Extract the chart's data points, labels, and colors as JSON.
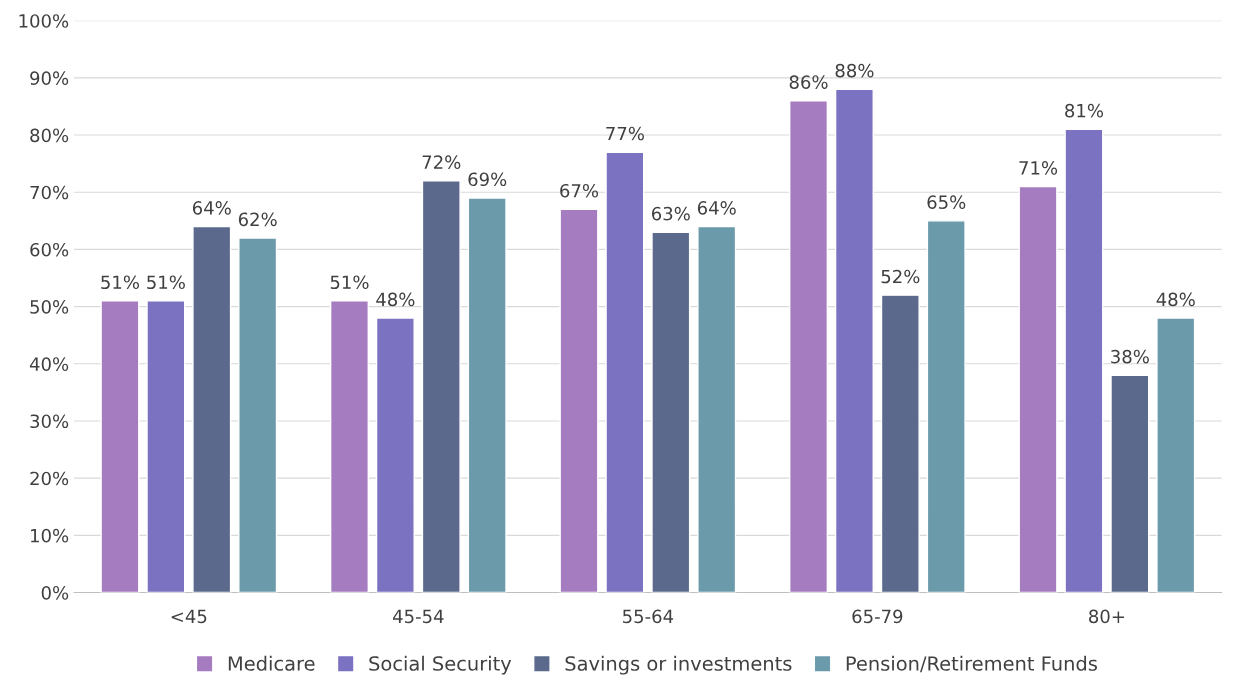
{
  "chart_data": {
    "type": "bar",
    "categories": [
      "<45",
      "45-54",
      "55-64",
      "65-79",
      "80+"
    ],
    "series": [
      {
        "name": "Medicare",
        "color": "#a67cc0",
        "values": [
          51,
          51,
          67,
          86,
          71
        ],
        "value_labels": [
          "51%",
          "51%",
          "67%",
          "86%",
          "71%"
        ]
      },
      {
        "name": "Social Security",
        "color": "#7b72c2",
        "values": [
          51,
          48,
          77,
          88,
          81
        ],
        "value_labels": [
          "51%",
          "48%",
          "77%",
          "88%",
          "81%"
        ]
      },
      {
        "name": "Savings or investments",
        "color": "#5b6a8c",
        "values": [
          64,
          72,
          63,
          52,
          38
        ],
        "value_labels": [
          "64%",
          "72%",
          "63%",
          "52%",
          "38%"
        ]
      },
      {
        "name": "Pension/Retirement Funds",
        "color": "#6b9aab",
        "values": [
          62,
          69,
          64,
          65,
          48
        ],
        "value_labels": [
          "62%",
          "69%",
          "64%",
          "65%",
          "48%"
        ]
      }
    ],
    "ylim": [
      0,
      100
    ],
    "yticks": [
      {
        "value": 0,
        "label": "0%"
      },
      {
        "value": 10,
        "label": "10%"
      },
      {
        "value": 20,
        "label": "20%"
      },
      {
        "value": 30,
        "label": "30%"
      },
      {
        "value": 40,
        "label": "40%"
      },
      {
        "value": 50,
        "label": "50%"
      },
      {
        "value": 60,
        "label": "60%"
      },
      {
        "value": 70,
        "label": "70%"
      },
      {
        "value": 80,
        "label": "80%"
      },
      {
        "value": 90,
        "label": "90%"
      },
      {
        "value": 100,
        "label": "100%"
      }
    ],
    "grid": "y",
    "legend": "bottom"
  }
}
